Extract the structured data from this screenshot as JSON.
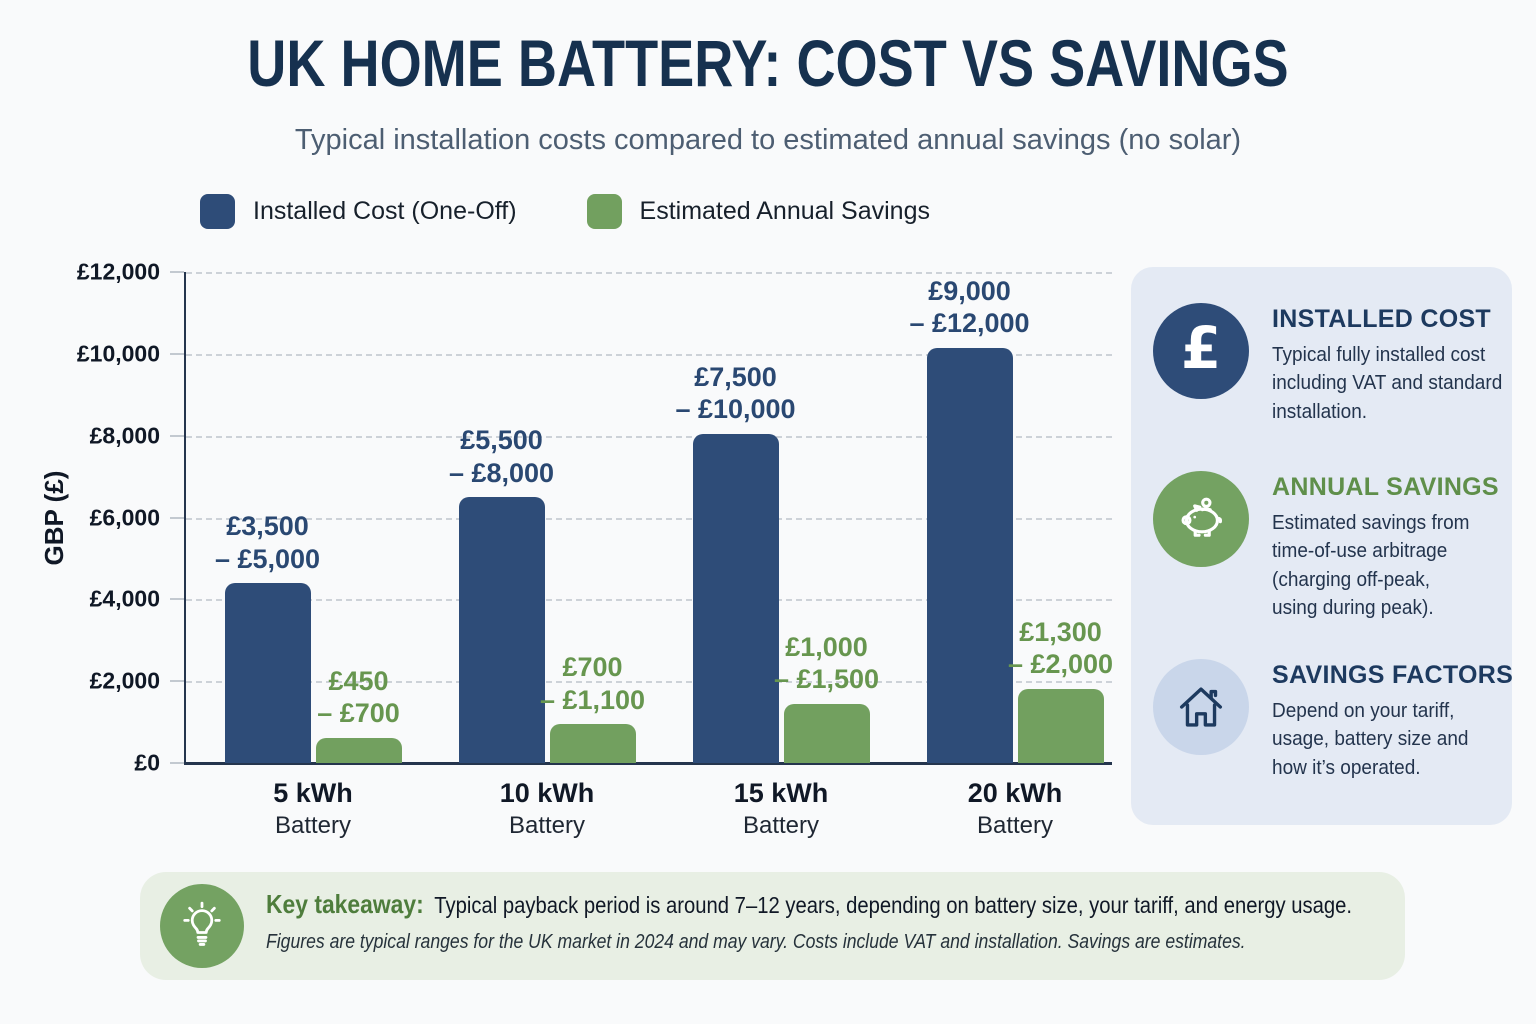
{
  "title": "UK HOME BATTERY: COST VS SAVINGS",
  "subtitle": "Typical installation costs compared to estimated annual savings (no solar)",
  "legend": [
    {
      "label": "Installed Cost (One-Off)",
      "color": "#2e4c78"
    },
    {
      "label": "Estimated Annual Savings",
      "color": "#72a05f"
    }
  ],
  "chart_data": {
    "type": "bar",
    "title": "UK Home Battery: Cost vs Savings",
    "xlabel": "",
    "ylabel": "GBP (£)",
    "ylim": [
      0,
      12000
    ],
    "grid": true,
    "legend_position": "top",
    "ytick_labels": [
      "£0",
      "£2,000",
      "£4,000",
      "£6,000",
      "£8,000",
      "£10,000",
      "£12,000"
    ],
    "categories": [
      {
        "line1": "5 kWh",
        "line2": "Battery"
      },
      {
        "line1": "10 kWh",
        "line2": "Battery"
      },
      {
        "line1": "15 kWh",
        "line2": "Battery"
      },
      {
        "line1": "20 kWh",
        "line2": "Battery"
      }
    ],
    "series": [
      {
        "name": "Installed Cost (One-Off)",
        "color": "#2e4c78",
        "label_color": "#2a4872",
        "range_low": [
          3500,
          5500,
          7500,
          9000
        ],
        "range_high": [
          5000,
          8000,
          10000,
          12000
        ],
        "bar_values": [
          4400,
          6500,
          8050,
          10150
        ],
        "label_lines": [
          [
            "£3,500",
            "– £5,000"
          ],
          [
            "£5,500",
            "– £8,000"
          ],
          [
            "£7,500",
            "– £10,000"
          ],
          [
            "£9,000",
            "– £12,000"
          ]
        ]
      },
      {
        "name": "Estimated Annual Savings",
        "color": "#72a05f",
        "label_color": "#67964f",
        "range_low": [
          450,
          700,
          1000,
          1300
        ],
        "range_high": [
          700,
          1100,
          1500,
          2000
        ],
        "bar_values": [
          620,
          950,
          1450,
          1820
        ],
        "label_lines": [
          [
            "£450",
            "– £700"
          ],
          [
            "£700",
            "– £1,100"
          ],
          [
            "£1,000",
            "– £1,500"
          ],
          [
            "£1,300",
            "– £2,000"
          ]
        ]
      }
    ]
  },
  "sidebar": {
    "cards": [
      {
        "icon": "pound-icon",
        "heading": "INSTALLED COST",
        "heading_color": "#1d3a5f",
        "body": "Typical fully installed cost\nincluding VAT and standard\ninstallation."
      },
      {
        "icon": "piggy-bank-icon",
        "heading": "ANNUAL SAVINGS",
        "heading_color": "#5f8f4a",
        "body": "Estimated savings from\ntime-of-use arbitrage\n(charging off-peak,\nusing during peak)."
      },
      {
        "icon": "house-icon",
        "heading": "SAVINGS FACTORS",
        "heading_color": "#1d3a5f",
        "body": "Depend on your tariff,\nusage, battery size and\nhow it’s operated."
      }
    ]
  },
  "takeaway": {
    "label": "Key takeaway:",
    "text": "Typical payback period is around 7–12 years, depending on battery size, your tariff, and energy usage.",
    "footnote": "Figures are typical ranges for the UK market in 2024 and may vary. Costs include VAT and installation. Savings are estimates."
  }
}
